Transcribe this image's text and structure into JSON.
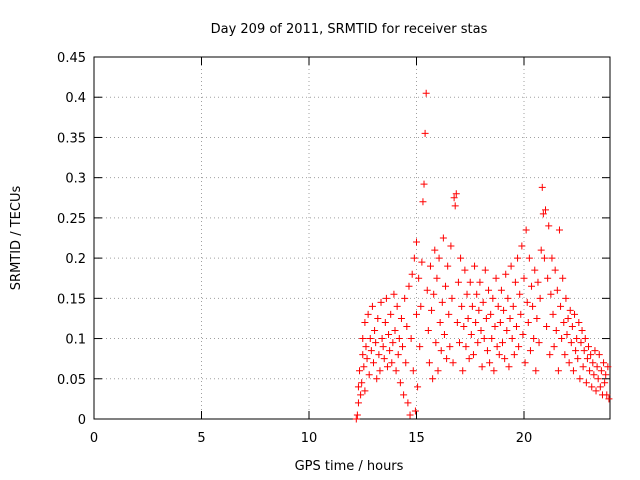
{
  "chart_data": {
    "type": "scatter",
    "title": "Day 209 of 2011, SRMTID for receiver stas",
    "xlabel": "GPS time / hours",
    "ylabel": "SRMTID / TECUs",
    "xlim": [
      0,
      24
    ],
    "ylim": [
      0,
      0.45
    ],
    "x_ticks": [
      "0",
      "5",
      "10",
      "15",
      "20"
    ],
    "y_ticks": [
      "0",
      "0.05",
      "0.1",
      "0.15",
      "0.2",
      "0.25",
      "0.3",
      "0.35",
      "0.4",
      "0.45"
    ],
    "grid": true,
    "marker": "plus",
    "color": "#ff0000",
    "series": [
      {
        "name": "SRMTID",
        "points": [
          [
            12.2,
            0.0
          ],
          [
            12.25,
            0.005
          ],
          [
            12.3,
            0.02
          ],
          [
            12.3,
            0.04
          ],
          [
            12.35,
            0.06
          ],
          [
            12.4,
            0.03
          ],
          [
            12.45,
            0.045
          ],
          [
            12.5,
            0.08
          ],
          [
            12.5,
            0.1
          ],
          [
            12.55,
            0.065
          ],
          [
            12.6,
            0.12
          ],
          [
            12.6,
            0.035
          ],
          [
            12.65,
            0.09
          ],
          [
            12.7,
            0.075
          ],
          [
            12.75,
            0.13
          ],
          [
            12.8,
            0.055
          ],
          [
            12.85,
            0.1
          ],
          [
            12.9,
            0.085
          ],
          [
            12.95,
            0.14
          ],
          [
            13.0,
            0.07
          ],
          [
            13.05,
            0.11
          ],
          [
            13.1,
            0.095
          ],
          [
            13.15,
            0.05
          ],
          [
            13.2,
            0.125
          ],
          [
            13.25,
            0.08
          ],
          [
            13.3,
            0.06
          ],
          [
            13.35,
            0.145
          ],
          [
            13.4,
            0.1
          ],
          [
            13.45,
            0.09
          ],
          [
            13.5,
            0.075
          ],
          [
            13.55,
            0.12
          ],
          [
            13.6,
            0.15
          ],
          [
            13.65,
            0.065
          ],
          [
            13.7,
            0.105
          ],
          [
            13.75,
            0.085
          ],
          [
            13.8,
            0.13
          ],
          [
            13.85,
            0.07
          ],
          [
            13.9,
            0.095
          ],
          [
            13.95,
            0.155
          ],
          [
            14.0,
            0.11
          ],
          [
            14.05,
            0.06
          ],
          [
            14.1,
            0.14
          ],
          [
            14.15,
            0.08
          ],
          [
            14.2,
            0.1
          ],
          [
            14.25,
            0.045
          ],
          [
            14.3,
            0.125
          ],
          [
            14.35,
            0.09
          ],
          [
            14.4,
            0.03
          ],
          [
            14.45,
            0.15
          ],
          [
            14.5,
            0.07
          ],
          [
            14.55,
            0.115
          ],
          [
            14.6,
            0.02
          ],
          [
            14.65,
            0.165
          ],
          [
            14.7,
            0.005
          ],
          [
            14.75,
            0.1
          ],
          [
            14.8,
            0.18
          ],
          [
            14.85,
            0.06
          ],
          [
            14.9,
            0.2
          ],
          [
            14.95,
            0.01
          ],
          [
            15.0,
            0.22
          ],
          [
            15.0,
            0.13
          ],
          [
            15.05,
            0.04
          ],
          [
            15.1,
            0.175
          ],
          [
            15.15,
            0.09
          ],
          [
            15.2,
            0.14
          ],
          [
            15.25,
            0.195
          ],
          [
            15.3,
            0.27
          ],
          [
            15.35,
            0.292
          ],
          [
            15.4,
            0.355
          ],
          [
            15.45,
            0.405
          ],
          [
            15.5,
            0.16
          ],
          [
            15.55,
            0.11
          ],
          [
            15.6,
            0.07
          ],
          [
            15.65,
            0.19
          ],
          [
            15.7,
            0.135
          ],
          [
            15.75,
            0.05
          ],
          [
            15.8,
            0.155
          ],
          [
            15.85,
            0.21
          ],
          [
            15.9,
            0.095
          ],
          [
            15.95,
            0.175
          ],
          [
            16.0,
            0.06
          ],
          [
            16.05,
            0.2
          ],
          [
            16.1,
            0.12
          ],
          [
            16.15,
            0.085
          ],
          [
            16.2,
            0.145
          ],
          [
            16.25,
            0.225
          ],
          [
            16.3,
            0.105
          ],
          [
            16.35,
            0.165
          ],
          [
            16.4,
            0.075
          ],
          [
            16.45,
            0.19
          ],
          [
            16.5,
            0.13
          ],
          [
            16.55,
            0.09
          ],
          [
            16.6,
            0.215
          ],
          [
            16.65,
            0.15
          ],
          [
            16.7,
            0.07
          ],
          [
            16.75,
            0.275
          ],
          [
            16.8,
            0.265
          ],
          [
            16.85,
            0.28
          ],
          [
            16.9,
            0.12
          ],
          [
            16.95,
            0.17
          ],
          [
            17.0,
            0.095
          ],
          [
            17.05,
            0.2
          ],
          [
            17.1,
            0.14
          ],
          [
            17.15,
            0.06
          ],
          [
            17.2,
            0.115
          ],
          [
            17.25,
            0.185
          ],
          [
            17.3,
            0.09
          ],
          [
            17.35,
            0.155
          ],
          [
            17.4,
            0.125
          ],
          [
            17.45,
            0.075
          ],
          [
            17.5,
            0.17
          ],
          [
            17.55,
            0.105
          ],
          [
            17.6,
            0.14
          ],
          [
            17.65,
            0.08
          ],
          [
            17.7,
            0.19
          ],
          [
            17.75,
            0.12
          ],
          [
            17.8,
            0.155
          ],
          [
            17.85,
            0.095
          ],
          [
            17.9,
            0.135
          ],
          [
            17.95,
            0.17
          ],
          [
            18.0,
            0.11
          ],
          [
            18.05,
            0.065
          ],
          [
            18.1,
            0.145
          ],
          [
            18.15,
            0.1
          ],
          [
            18.2,
            0.185
          ],
          [
            18.25,
            0.125
          ],
          [
            18.3,
            0.085
          ],
          [
            18.35,
            0.16
          ],
          [
            18.4,
            0.07
          ],
          [
            18.45,
            0.13
          ],
          [
            18.5,
            0.1
          ],
          [
            18.55,
            0.15
          ],
          [
            18.6,
            0.06
          ],
          [
            18.65,
            0.115
          ],
          [
            18.7,
            0.175
          ],
          [
            18.75,
            0.09
          ],
          [
            18.8,
            0.14
          ],
          [
            18.85,
            0.08
          ],
          [
            18.9,
            0.12
          ],
          [
            18.95,
            0.16
          ],
          [
            19.0,
            0.095
          ],
          [
            19.05,
            0.135
          ],
          [
            19.1,
            0.075
          ],
          [
            19.15,
            0.18
          ],
          [
            19.2,
            0.11
          ],
          [
            19.25,
            0.15
          ],
          [
            19.3,
            0.065
          ],
          [
            19.35,
            0.125
          ],
          [
            19.4,
            0.19
          ],
          [
            19.45,
            0.1
          ],
          [
            19.5,
            0.14
          ],
          [
            19.55,
            0.08
          ],
          [
            19.6,
            0.17
          ],
          [
            19.65,
            0.115
          ],
          [
            19.7,
            0.2
          ],
          [
            19.75,
            0.09
          ],
          [
            19.8,
            0.155
          ],
          [
            19.85,
            0.13
          ],
          [
            19.9,
            0.215
          ],
          [
            19.95,
            0.105
          ],
          [
            20.0,
            0.175
          ],
          [
            20.05,
            0.07
          ],
          [
            20.1,
            0.235
          ],
          [
            20.15,
            0.145
          ],
          [
            20.2,
            0.12
          ],
          [
            20.25,
            0.2
          ],
          [
            20.3,
            0.085
          ],
          [
            20.35,
            0.165
          ],
          [
            20.4,
            0.14
          ],
          [
            20.45,
            0.1
          ],
          [
            20.5,
            0.185
          ],
          [
            20.55,
            0.06
          ],
          [
            20.6,
            0.125
          ],
          [
            20.65,
            0.17
          ],
          [
            20.7,
            0.095
          ],
          [
            20.75,
            0.15
          ],
          [
            20.8,
            0.21
          ],
          [
            20.85,
            0.288
          ],
          [
            20.9,
            0.255
          ],
          [
            20.95,
            0.2
          ],
          [
            21.0,
            0.26
          ],
          [
            21.05,
            0.115
          ],
          [
            21.1,
            0.175
          ],
          [
            21.15,
            0.24
          ],
          [
            21.2,
            0.08
          ],
          [
            21.25,
            0.155
          ],
          [
            21.3,
            0.2
          ],
          [
            21.35,
            0.13
          ],
          [
            21.4,
            0.09
          ],
          [
            21.45,
            0.185
          ],
          [
            21.5,
            0.11
          ],
          [
            21.55,
            0.16
          ],
          [
            21.6,
            0.06
          ],
          [
            21.65,
            0.235
          ],
          [
            21.7,
            0.14
          ],
          [
            21.75,
            0.1
          ],
          [
            21.8,
            0.175
          ],
          [
            21.85,
            0.12
          ],
          [
            21.9,
            0.08
          ],
          [
            21.95,
            0.15
          ],
          [
            22.0,
            0.105
          ],
          [
            22.05,
            0.125
          ],
          [
            22.1,
            0.07
          ],
          [
            22.15,
            0.135
          ],
          [
            22.2,
            0.095
          ],
          [
            22.25,
            0.115
          ],
          [
            22.3,
            0.06
          ],
          [
            22.35,
            0.13
          ],
          [
            22.4,
            0.085
          ],
          [
            22.45,
            0.1
          ],
          [
            22.5,
            0.075
          ],
          [
            22.55,
            0.12
          ],
          [
            22.6,
            0.05
          ],
          [
            22.65,
            0.095
          ],
          [
            22.7,
            0.11
          ],
          [
            22.75,
            0.065
          ],
          [
            22.8,
            0.085
          ],
          [
            22.85,
            0.1
          ],
          [
            22.9,
            0.045
          ],
          [
            22.95,
            0.075
          ],
          [
            23.0,
            0.09
          ],
          [
            23.05,
            0.06
          ],
          [
            23.1,
            0.08
          ],
          [
            23.15,
            0.04
          ],
          [
            23.2,
            0.07
          ],
          [
            23.25,
            0.055
          ],
          [
            23.3,
            0.085
          ],
          [
            23.35,
            0.035
          ],
          [
            23.4,
            0.065
          ],
          [
            23.45,
            0.05
          ],
          [
            23.5,
            0.08
          ],
          [
            23.55,
            0.04
          ],
          [
            23.6,
            0.06
          ],
          [
            23.65,
            0.03
          ],
          [
            23.7,
            0.07
          ],
          [
            23.75,
            0.045
          ],
          [
            23.8,
            0.055
          ],
          [
            23.85,
            0.03
          ],
          [
            23.9,
            0.065
          ],
          [
            23.95,
            0.025
          ]
        ]
      }
    ]
  }
}
